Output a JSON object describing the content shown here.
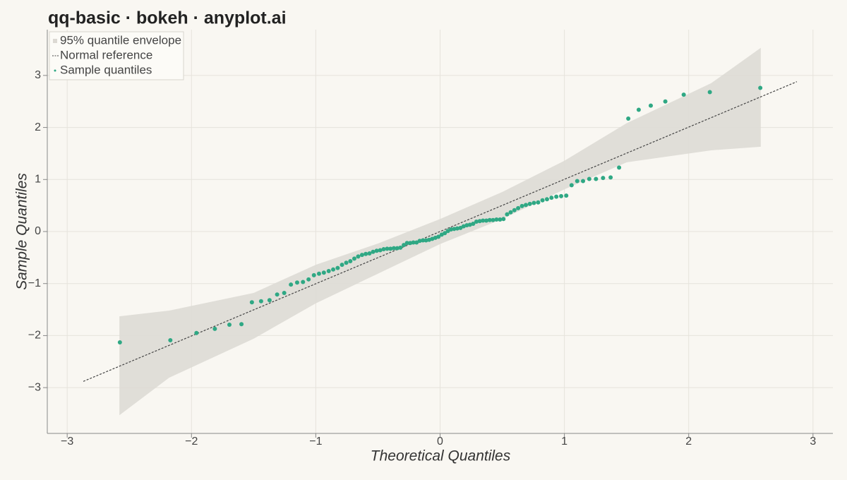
{
  "chart_data": {
    "type": "qq",
    "title": "qq-basic · bokeh · anyplot.ai",
    "xlabel": "Theoretical Quantiles",
    "ylabel": "Sample Quantiles",
    "xlim": [
      -3.16,
      3.16
    ],
    "ylim": [
      -3.88,
      3.88
    ],
    "xticks": [
      {
        "value": -3,
        "label": "−3"
      },
      {
        "value": -2,
        "label": "−2"
      },
      {
        "value": -1,
        "label": "−1"
      },
      0,
      1,
      2,
      3
    ],
    "yticks": [
      {
        "value": -3,
        "label": "−3"
      },
      {
        "value": -2,
        "label": "−2"
      },
      {
        "value": -1,
        "label": "−1"
      },
      0,
      1,
      2,
      3
    ],
    "grid": true,
    "legend": "top-left",
    "series": [
      {
        "name": "95% quantile envelope",
        "color": "#dcd9d3",
        "x": [
          -2.58,
          -2.18,
          -1.5,
          -1.0,
          -0.5,
          0,
          0.5,
          1.0,
          1.5,
          2.18,
          2.58
        ],
        "upper": [
          -1.63,
          -1.52,
          -1.18,
          -0.64,
          -0.23,
          0.24,
          0.76,
          1.36,
          2.08,
          2.85,
          3.53
        ],
        "lower": [
          -3.53,
          -2.81,
          -2.06,
          -1.38,
          -0.81,
          -0.24,
          0.24,
          0.81,
          1.33,
          1.56,
          1.63
        ]
      },
      {
        "name": "Normal reference",
        "color": "#444444",
        "x": [
          -2.87,
          2.87
        ],
        "y": [
          -2.88,
          2.88
        ]
      },
      {
        "name": "Sample quantiles",
        "color": "#2fa884",
        "x": [
          -2.576,
          -2.17,
          -1.96,
          -1.812,
          -1.695,
          -1.598,
          -1.514,
          -1.44,
          -1.372,
          -1.311,
          -1.254,
          -1.2,
          -1.15,
          -1.103,
          -1.058,
          -1.015,
          -0.974,
          -0.935,
          -0.896,
          -0.86,
          -0.824,
          -0.789,
          -0.755,
          -0.722,
          -0.69,
          -0.659,
          -0.628,
          -0.598,
          -0.568,
          -0.539,
          -0.51,
          -0.482,
          -0.454,
          -0.426,
          -0.399,
          -0.372,
          -0.345,
          -0.319,
          -0.292,
          -0.266,
          -0.24,
          -0.215,
          -0.189,
          -0.164,
          -0.138,
          -0.113,
          -0.088,
          -0.063,
          -0.038,
          -0.013,
          0.013,
          0.038,
          0.063,
          0.088,
          0.113,
          0.138,
          0.164,
          0.189,
          0.215,
          0.24,
          0.266,
          0.292,
          0.319,
          0.345,
          0.372,
          0.399,
          0.426,
          0.454,
          0.482,
          0.51,
          0.539,
          0.568,
          0.598,
          0.628,
          0.659,
          0.69,
          0.722,
          0.755,
          0.789,
          0.824,
          0.86,
          0.896,
          0.935,
          0.974,
          1.015,
          1.058,
          1.103,
          1.15,
          1.2,
          1.254,
          1.311,
          1.372,
          1.44,
          1.514,
          1.598,
          1.695,
          1.812,
          1.96,
          2.17,
          2.576
        ],
        "y": [
          -2.13,
          -2.09,
          -1.95,
          -1.87,
          -1.79,
          -1.78,
          -1.36,
          -1.34,
          -1.32,
          -1.21,
          -1.18,
          -1.02,
          -0.98,
          -0.97,
          -0.92,
          -0.84,
          -0.81,
          -0.79,
          -0.76,
          -0.73,
          -0.7,
          -0.64,
          -0.6,
          -0.57,
          -0.52,
          -0.48,
          -0.45,
          -0.43,
          -0.42,
          -0.39,
          -0.37,
          -0.36,
          -0.34,
          -0.33,
          -0.33,
          -0.32,
          -0.32,
          -0.31,
          -0.26,
          -0.22,
          -0.22,
          -0.21,
          -0.21,
          -0.18,
          -0.17,
          -0.17,
          -0.16,
          -0.14,
          -0.12,
          -0.1,
          -0.06,
          -0.03,
          0.01,
          0.04,
          0.05,
          0.06,
          0.07,
          0.1,
          0.12,
          0.13,
          0.15,
          0.19,
          0.2,
          0.21,
          0.21,
          0.22,
          0.22,
          0.23,
          0.23,
          0.24,
          0.33,
          0.37,
          0.41,
          0.45,
          0.49,
          0.51,
          0.53,
          0.55,
          0.56,
          0.6,
          0.62,
          0.65,
          0.67,
          0.68,
          0.69,
          0.89,
          0.97,
          0.97,
          1.01,
          1.01,
          1.03,
          1.04,
          1.23,
          2.17,
          2.34,
          2.42,
          2.5,
          2.63,
          2.68,
          2.76
        ]
      }
    ]
  }
}
